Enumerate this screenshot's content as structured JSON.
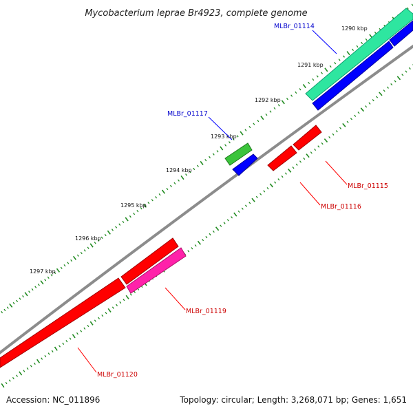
{
  "title": "Mycobacterium leprae Br4923, complete genome",
  "footer": {
    "accession": "Accession: NC_011896",
    "summary": "Topology: circular; Length: 3,268,071 bp; Genes: 1,651"
  },
  "colors": {
    "backbone": "#8c8c8c",
    "tick": "#1f8a1f",
    "label_forward": "#0000cc",
    "label_reverse": "#cc0000",
    "leader_forward": "#0000ff",
    "leader_reverse": "#ff0000"
  },
  "kbp_labels": [
    "1290 kbp",
    "1291 kbp",
    "1292 kbp",
    "1293 kbp",
    "1294 kbp",
    "1295 kbp",
    "1296 kbp",
    "1297 kbp"
  ],
  "genes": [
    {
      "id": "MLBr_01114",
      "strand": "+",
      "color": "#2ee6a0"
    },
    {
      "id": "MLBr_01115",
      "strand": "-",
      "color": "#ff0000"
    },
    {
      "id": "MLBr_01116",
      "strand": "-",
      "color": "#ff0000"
    },
    {
      "id": "MLBr_01117",
      "strand": "+",
      "color": "#3bc43b"
    },
    {
      "id": "MLBr_01119",
      "strand": "-",
      "color": "#ff22aa"
    },
    {
      "id": "MLBr_01120",
      "strand": "-",
      "color": "#ff0000"
    }
  ]
}
